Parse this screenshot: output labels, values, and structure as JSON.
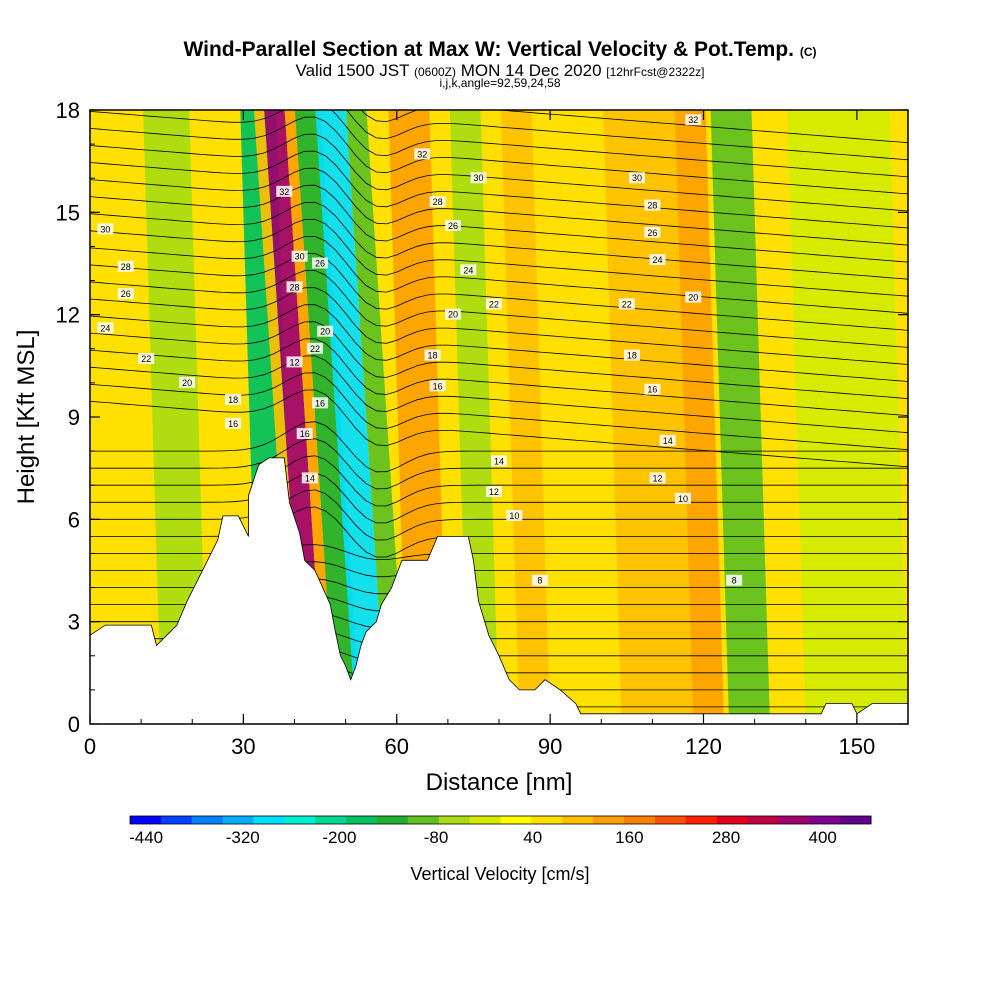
{
  "title": {
    "main": "Wind-Parallel Section at Max W: Vertical Velocity & Pot.Temp.",
    "copyright": "(C)"
  },
  "subtitle": {
    "valid_prefix": "Valid 1500 JST",
    "utc": "(0600Z)",
    "date": "MON 14 Dec 2020",
    "forecast": "[12hrFcst@2322z]",
    "indices": "i,j,k,angle=92,59,24,58"
  },
  "chart_data": {
    "type": "heatmap",
    "xlabel": "Distance [nm]",
    "ylabel": "Height [Kft MSL]",
    "xlim": [
      0,
      160
    ],
    "ylim": [
      0,
      18
    ],
    "x_ticks": [
      0,
      30,
      60,
      90,
      120,
      150
    ],
    "y_ticks": [
      0,
      3,
      6,
      9,
      12,
      15,
      18
    ],
    "colorbar": {
      "label": "Vertical Velocity [cm/s]",
      "tick_labels": [
        "-440",
        "-320",
        "-200",
        "-80",
        "40",
        "160",
        "280",
        "400"
      ],
      "tick_values": [
        -440,
        -320,
        -200,
        -80,
        40,
        160,
        280,
        400
      ],
      "min": -460,
      "max": 460,
      "colors": [
        "#0000ff",
        "#0040ff",
        "#0080ff",
        "#00b0ff",
        "#00e0ff",
        "#00f0d0",
        "#00d890",
        "#00c060",
        "#20b030",
        "#60c020",
        "#a8dc10",
        "#d4ec00",
        "#ffff00",
        "#ffe000",
        "#ffc000",
        "#ffa000",
        "#ff8000",
        "#ff5000",
        "#ff2000",
        "#e00020",
        "#c00040",
        "#a00070",
        "#800090",
        "#60008c"
      ]
    },
    "velocity_bands": [
      {
        "x_start": 14,
        "x_end": 23,
        "w": -60
      },
      {
        "x_start": 26,
        "x_end": 30,
        "w": 60
      },
      {
        "x_start": 33,
        "x_end": 40,
        "w": -170
      },
      {
        "x_start": 40,
        "x_end": 42,
        "w": 110
      },
      {
        "x_start": 42,
        "x_end": 46,
        "w": 360
      },
      {
        "x_start": 46,
        "x_end": 48,
        "w": 150
      },
      {
        "x_start": 48,
        "x_end": 53,
        "w": -130
      },
      {
        "x_start": 52,
        "x_end": 58,
        "w": -300
      },
      {
        "x_start": 58,
        "x_end": 62,
        "w": -80
      },
      {
        "x_start": 62,
        "x_end": 70,
        "w": 130
      },
      {
        "x_start": 74,
        "x_end": 80,
        "w": -60
      },
      {
        "x_start": 84,
        "x_end": 90,
        "w": 90
      },
      {
        "x_start": 104,
        "x_end": 118,
        "w": 100
      },
      {
        "x_start": 118,
        "x_end": 124,
        "w": 150
      },
      {
        "x_start": 125,
        "x_end": 133,
        "w": -110
      },
      {
        "x_start": 140,
        "x_end": 160,
        "w": -30
      }
    ],
    "terrain": [
      [
        0,
        2.6
      ],
      [
        3,
        2.9
      ],
      [
        12,
        2.9
      ],
      [
        13,
        2.3
      ],
      [
        15,
        2.6
      ],
      [
        17,
        2.9
      ],
      [
        19,
        3.6
      ],
      [
        21,
        4.2
      ],
      [
        23,
        4.8
      ],
      [
        25,
        5.4
      ],
      [
        26,
        6.1
      ],
      [
        29,
        6.1
      ],
      [
        31,
        5.5
      ],
      [
        31,
        6.7
      ],
      [
        33,
        7.6
      ],
      [
        35,
        7.8
      ],
      [
        38,
        7.8
      ],
      [
        39,
        6.5
      ],
      [
        41,
        5.6
      ],
      [
        42,
        4.8
      ],
      [
        44,
        4.5
      ],
      [
        47,
        3.5
      ],
      [
        48,
        2.7
      ],
      [
        49,
        2.0
      ],
      [
        50,
        1.7
      ],
      [
        51,
        1.3
      ],
      [
        52,
        1.7
      ],
      [
        53,
        2.3
      ],
      [
        54,
        2.7
      ],
      [
        56,
        3.0
      ],
      [
        57,
        3.5
      ],
      [
        59,
        4.0
      ],
      [
        60,
        4.4
      ],
      [
        61,
        4.8
      ],
      [
        66,
        4.8
      ],
      [
        68,
        5.5
      ],
      [
        74,
        5.5
      ],
      [
        75,
        4.8
      ],
      [
        76,
        3.6
      ],
      [
        77,
        3.1
      ],
      [
        78,
        2.6
      ],
      [
        79,
        2.3
      ],
      [
        80,
        2.0
      ],
      [
        82,
        1.3
      ],
      [
        84,
        1.0
      ],
      [
        87,
        1.0
      ],
      [
        89,
        1.3
      ],
      [
        92,
        1.0
      ],
      [
        95,
        0.6
      ],
      [
        96,
        0.3
      ],
      [
        143,
        0.3
      ],
      [
        144,
        0.6
      ],
      [
        149,
        0.6
      ],
      [
        150,
        0.3
      ],
      [
        153,
        0.6
      ],
      [
        160,
        0.6
      ]
    ],
    "theta_labels": [
      {
        "x": 3,
        "y": 14.5,
        "value": "30"
      },
      {
        "x": 7,
        "y": 13.4,
        "value": "28"
      },
      {
        "x": 7,
        "y": 12.6,
        "value": "26"
      },
      {
        "x": 3,
        "y": 11.6,
        "value": "24"
      },
      {
        "x": 11,
        "y": 10.7,
        "value": "22"
      },
      {
        "x": 19,
        "y": 10.0,
        "value": "20"
      },
      {
        "x": 28,
        "y": 9.5,
        "value": "18"
      },
      {
        "x": 28,
        "y": 8.8,
        "value": "16"
      },
      {
        "x": 38,
        "y": 15.6,
        "value": "32"
      },
      {
        "x": 41,
        "y": 13.7,
        "value": "30"
      },
      {
        "x": 40,
        "y": 12.8,
        "value": "28"
      },
      {
        "x": 45,
        "y": 13.5,
        "value": "26"
      },
      {
        "x": 46,
        "y": 11.5,
        "value": "20"
      },
      {
        "x": 44,
        "y": 11.0,
        "value": "22"
      },
      {
        "x": 40,
        "y": 10.6,
        "value": "12"
      },
      {
        "x": 45,
        "y": 9.4,
        "value": "16"
      },
      {
        "x": 42,
        "y": 8.5,
        "value": "16"
      },
      {
        "x": 43,
        "y": 7.2,
        "value": "14"
      },
      {
        "x": 65,
        "y": 16.7,
        "value": "32"
      },
      {
        "x": 76,
        "y": 16.0,
        "value": "30"
      },
      {
        "x": 68,
        "y": 15.3,
        "value": "28"
      },
      {
        "x": 71,
        "y": 14.6,
        "value": "26"
      },
      {
        "x": 74,
        "y": 13.3,
        "value": "24"
      },
      {
        "x": 79,
        "y": 12.3,
        "value": "22"
      },
      {
        "x": 71,
        "y": 12.0,
        "value": "20"
      },
      {
        "x": 67,
        "y": 10.8,
        "value": "18"
      },
      {
        "x": 68,
        "y": 9.9,
        "value": "16"
      },
      {
        "x": 80,
        "y": 7.7,
        "value": "14"
      },
      {
        "x": 79,
        "y": 6.8,
        "value": "12"
      },
      {
        "x": 83,
        "y": 6.1,
        "value": "10"
      },
      {
        "x": 88,
        "y": 4.2,
        "value": "8"
      },
      {
        "x": 118,
        "y": 17.7,
        "value": "32"
      },
      {
        "x": 107,
        "y": 16.0,
        "value": "30"
      },
      {
        "x": 110,
        "y": 15.2,
        "value": "28"
      },
      {
        "x": 110,
        "y": 14.4,
        "value": "26"
      },
      {
        "x": 111,
        "y": 13.6,
        "value": "24"
      },
      {
        "x": 105,
        "y": 12.3,
        "value": "22"
      },
      {
        "x": 118,
        "y": 12.5,
        "value": "20"
      },
      {
        "x": 106,
        "y": 10.8,
        "value": "18"
      },
      {
        "x": 110,
        "y": 9.8,
        "value": "16"
      },
      {
        "x": 113,
        "y": 8.3,
        "value": "14"
      },
      {
        "x": 111,
        "y": 7.2,
        "value": "12"
      },
      {
        "x": 116,
        "y": 6.6,
        "value": "10"
      },
      {
        "x": 126,
        "y": 4.2,
        "value": "8"
      }
    ]
  }
}
